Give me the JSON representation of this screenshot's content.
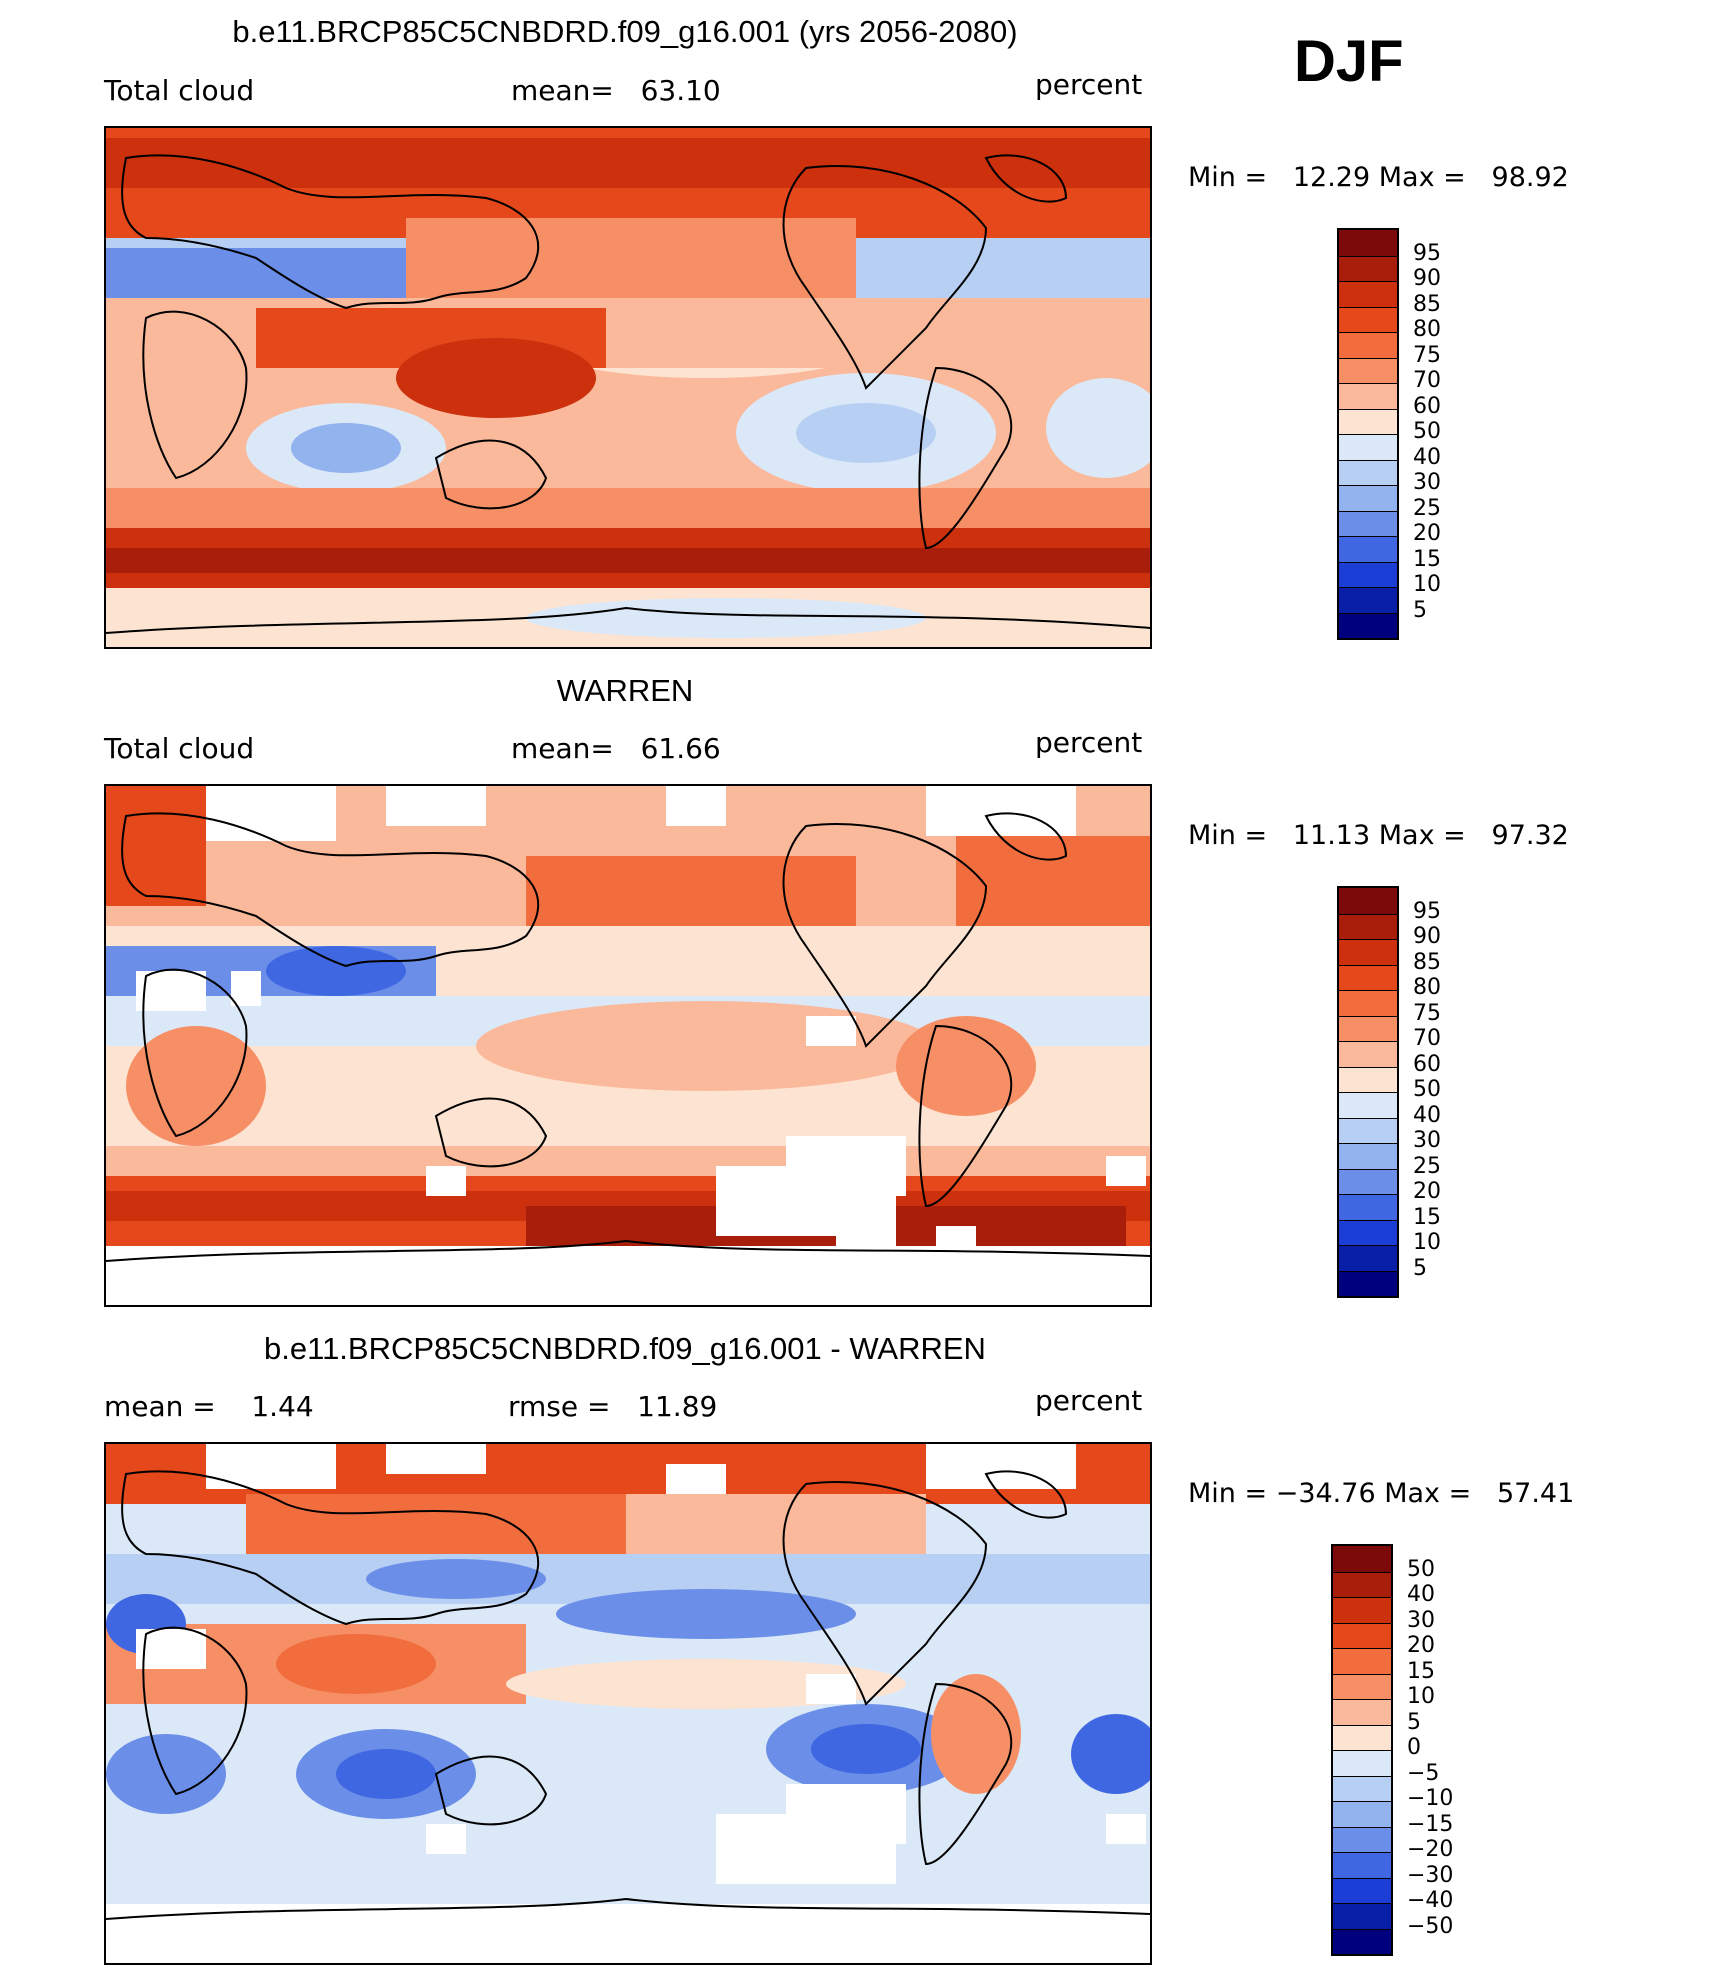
{
  "season": "DJF",
  "panels": [
    {
      "title": "b.e11.BRCP85C5CNBDRD.f09_g16.001 (yrs 2056-2080)",
      "left_label": "Total cloud",
      "center_label": "mean=   63.10",
      "right_label": "percent",
      "minmax": "Min =   12.29 Max =   98.92",
      "colorbar_levels": [
        "95",
        "90",
        "85",
        "80",
        "75",
        "70",
        "60",
        "50",
        "40",
        "30",
        "25",
        "20",
        "15",
        "10",
        "5"
      ]
    },
    {
      "title": "WARREN",
      "left_label": "Total cloud",
      "center_label": "mean=   61.66",
      "right_label": "percent",
      "minmax": "Min =   11.13 Max =   97.32",
      "colorbar_levels": [
        "95",
        "90",
        "85",
        "80",
        "75",
        "70",
        "60",
        "50",
        "40",
        "30",
        "25",
        "20",
        "15",
        "10",
        "5"
      ]
    },
    {
      "title": "b.e11.BRCP85C5CNBDRD.f09_g16.001 - WARREN",
      "left_label": "mean =    1.44",
      "center_label": "rmse =   11.89",
      "right_label": "percent",
      "minmax": "Min = −34.76 Max =   57.41",
      "colorbar_levels": [
        "50",
        "40",
        "30",
        "20",
        "15",
        "10",
        "5",
        "0",
        "−5",
        "−10",
        "−15",
        "−20",
        "−30",
        "−40",
        "−50"
      ]
    }
  ],
  "colors": {
    "palette": [
      "#7d0a0a",
      "#a81e0a",
      "#cc300c",
      "#e5481a",
      "#f26d3d",
      "#f78f66",
      "#fbb99b",
      "#fde4d2",
      "#dbe8f8",
      "#b7cff3",
      "#93b3ee",
      "#6b8fe8",
      "#3f67e1",
      "#1b3ed6",
      "#0a1fa8",
      "#00007f"
    ]
  }
}
